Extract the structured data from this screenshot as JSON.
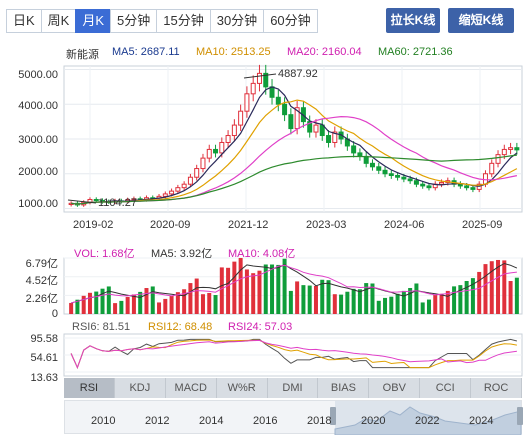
{
  "period_tabs": [
    "日K",
    "周K",
    "月K",
    "5分钟",
    "15分钟",
    "30分钟",
    "60分钟"
  ],
  "active_tab": "月K",
  "buttons": {
    "extend": "拉长K线",
    "shorten": "缩短K线"
  },
  "legend": {
    "name": "新能源",
    "ma5": "MA5: 2687.11",
    "ma10": "MA10: 2513.25",
    "ma20": "MA20: 2160.04",
    "ma60": "MA60: 2721.36"
  },
  "colors": {
    "up": "#e0303b",
    "down": "#0f9d3a",
    "ma5": "#2a2a5a",
    "ma10": "#e0a100",
    "ma20": "#e040c8",
    "ma60": "#2e8b2e",
    "accent": "#3b6cd5"
  },
  "price_axis": {
    "ticks": [
      "5000.00",
      "4000.00",
      "3000.00",
      "2000.00",
      "1000.00"
    ]
  },
  "annotations": {
    "high": "4887.92",
    "low": "1104.27"
  },
  "date_labels": [
    "2019-02",
    "2020-09",
    "2021-12",
    "2023-03",
    "2024-06",
    "2025-09"
  ],
  "volume": {
    "legend": {
      "vol": "VOL: 1.68亿",
      "ma5": "MA5: 3.92亿",
      "ma10": "MA10: 4.08亿"
    },
    "ticks": [
      "6.79亿",
      "4.52亿",
      "2.26亿",
      "0"
    ]
  },
  "rsi": {
    "legend": {
      "rsi6": "RSI6: 81.51",
      "rsi12": "RSI12: 68.48",
      "rsi24": "RSI24: 57.03"
    },
    "ticks": [
      "95.58",
      "54.61",
      "13.63"
    ]
  },
  "indicator_tabs": [
    "RSI",
    "KDJ",
    "MACD",
    "W%R",
    "DMI",
    "BIAS",
    "OBV",
    "CCI",
    "ROC"
  ],
  "active_indicator": "RSI",
  "timeline_labels": [
    "2010",
    "2012",
    "2014",
    "2016",
    "2018",
    "2020",
    "2022",
    "2024"
  ],
  "chart_data": {
    "type": "candlestick",
    "title": "新能源",
    "y_range": [
      900,
      5100
    ],
    "x_date_ticks": [
      "2019-02",
      "2020-09",
      "2021-12",
      "2023-03",
      "2024-06",
      "2025-09"
    ],
    "close_path": [
      1150,
      1104,
      1180,
      1260,
      1230,
      1200,
      1190,
      1220,
      1210,
      1250,
      1280,
      1260,
      1310,
      1300,
      1350,
      1420,
      1500,
      1600,
      1700,
      1900,
      2150,
      2450,
      2700,
      2600,
      2900,
      3100,
      3400,
      3800,
      4300,
      4600,
      4888,
      4500,
      4200,
      4000,
      3700,
      3300,
      3900,
      3500,
      3200,
      3400,
      3100,
      2900,
      3200,
      3000,
      2800,
      2600,
      2500,
      2300,
      2200,
      2100,
      2000,
      1950,
      1900,
      1850,
      1800,
      1700,
      1650,
      1600,
      1700,
      1750,
      1800,
      1700,
      1650,
      1600,
      1550,
      1700,
      2000,
      2300,
      2550,
      2700,
      2750,
      2687
    ],
    "ma_last": {
      "MA5": 2687.11,
      "MA10": 2513.25,
      "MA20": 2160.04,
      "MA60": 2721.36
    },
    "volume_range": [
      0,
      6.79
    ],
    "volume_unit": "亿",
    "rsi_range": [
      13.63,
      95.58
    ],
    "rsi_last": {
      "RSI6": 81.51,
      "RSI12": 68.48,
      "RSI24": 57.03
    }
  }
}
